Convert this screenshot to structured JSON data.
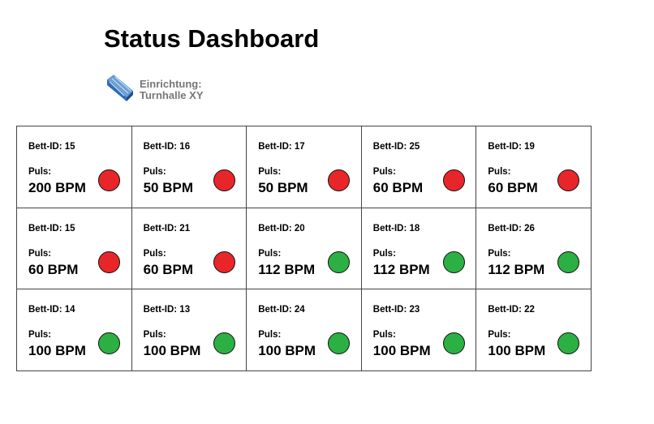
{
  "header": {
    "title": "Status Dashboard",
    "facility_label": "Einrichtung:",
    "facility_name": "Turnhalle XY"
  },
  "status_colors": {
    "red": "#e8262a",
    "green": "#2cb044"
  },
  "grid": {
    "columns": 5,
    "cells": [
      {
        "bed": "Bett-ID: 15",
        "pulse_label": "Puls:",
        "pulse": "200 BPM",
        "status": "red"
      },
      {
        "bed": "Bett-ID: 16",
        "pulse_label": "Puls:",
        "pulse": "50 BPM",
        "status": "red"
      },
      {
        "bed": "Bett-ID: 17",
        "pulse_label": "Puls:",
        "pulse": "50 BPM",
        "status": "red"
      },
      {
        "bed": "Bett-ID: 25",
        "pulse_label": "Puls:",
        "pulse": "60 BPM",
        "status": "red"
      },
      {
        "bed": "Bett-ID: 19",
        "pulse_label": "Puls:",
        "pulse": "60 BPM",
        "status": "red"
      },
      {
        "bed": "Bett-ID: 15",
        "pulse_label": "Puls:",
        "pulse": "60 BPM",
        "status": "red"
      },
      {
        "bed": "Bett-ID: 21",
        "pulse_label": "Puls:",
        "pulse": "60 BPM",
        "status": "red"
      },
      {
        "bed": "Bett-ID: 20",
        "pulse_label": "Puls:",
        "pulse": "112 BPM",
        "status": "green"
      },
      {
        "bed": "Bett-ID: 18",
        "pulse_label": "Puls:",
        "pulse": "112 BPM",
        "status": "green"
      },
      {
        "bed": "Bett-ID: 26",
        "pulse_label": "Puls:",
        "pulse": "112 BPM",
        "status": "green"
      },
      {
        "bed": "Bett-ID: 14",
        "pulse_label": "Puls:",
        "pulse": "100 BPM",
        "status": "green"
      },
      {
        "bed": "Bett-ID: 13",
        "pulse_label": "Puls:",
        "pulse": "100 BPM",
        "status": "green"
      },
      {
        "bed": "Bett-ID: 24",
        "pulse_label": "Puls:",
        "pulse": "100 BPM",
        "status": "green"
      },
      {
        "bed": "Bett-ID: 23",
        "pulse_label": "Puls:",
        "pulse": "100 BPM",
        "status": "green"
      },
      {
        "bed": "Bett-ID: 22",
        "pulse_label": "Puls:",
        "pulse": "100 BPM",
        "status": "green"
      }
    ]
  }
}
